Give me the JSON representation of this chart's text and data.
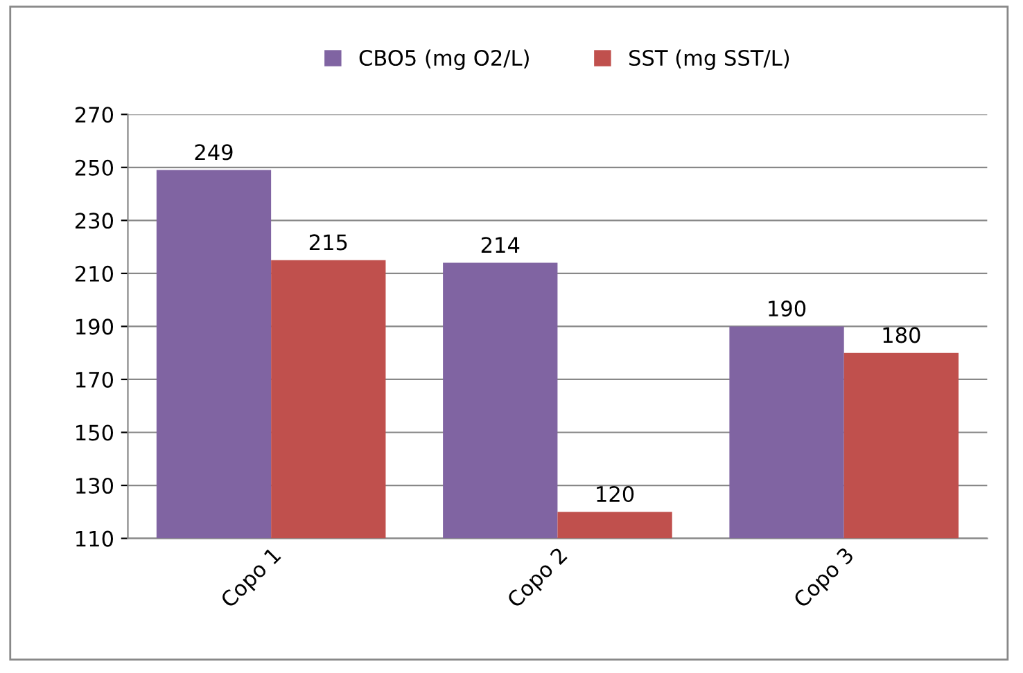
{
  "chart_data": {
    "type": "bar",
    "categories": [
      "Copo 1",
      "Copo 2",
      "Copo 3"
    ],
    "series": [
      {
        "name": "CBO5 (mg O2/L)",
        "color": "#8064a2",
        "values": [
          249,
          214,
          190
        ]
      },
      {
        "name": "SST (mg SST/L)",
        "color": "#c0504d",
        "values": [
          215,
          120,
          180
        ]
      }
    ],
    "ylim": [
      110,
      270
    ],
    "yticks": [
      110,
      130,
      150,
      170,
      190,
      210,
      230,
      250,
      270
    ],
    "grid": "y",
    "legend": "top",
    "data_labels": true
  }
}
